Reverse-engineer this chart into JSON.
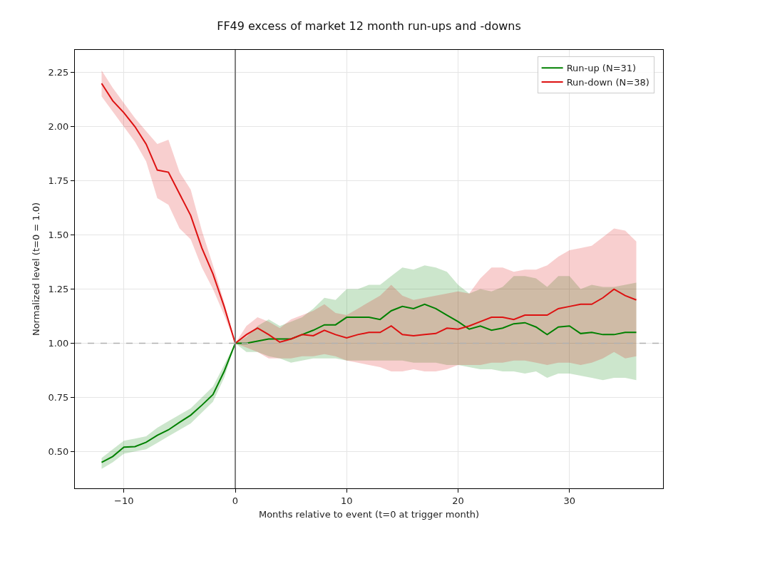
{
  "chart_data": {
    "type": "line",
    "title": "FF49 excess of market 12 month run-ups and -downs",
    "xlabel": "Months relative to event (t=0 at trigger month)",
    "ylabel": "Normalized level (t=0 = 1.0)",
    "x": [
      -12,
      -11,
      -10,
      -9,
      -8,
      -7,
      -6,
      -5,
      -4,
      -3,
      -2,
      -1,
      0,
      1,
      2,
      3,
      4,
      5,
      6,
      7,
      8,
      9,
      10,
      11,
      12,
      13,
      14,
      15,
      16,
      17,
      18,
      19,
      20,
      21,
      22,
      23,
      24,
      25,
      26,
      27,
      28,
      29,
      30,
      31,
      32,
      33,
      34,
      35,
      36
    ],
    "series": [
      {
        "name": "Run-up (N=31)",
        "color": "#008000",
        "values": [
          0.45,
          0.477,
          0.52,
          0.523,
          0.543,
          0.575,
          0.6,
          0.635,
          0.668,
          0.714,
          0.763,
          0.87,
          1.0,
          1.0,
          1.01,
          1.02,
          1.02,
          1.02,
          1.04,
          1.06,
          1.085,
          1.085,
          1.12,
          1.12,
          1.12,
          1.11,
          1.15,
          1.17,
          1.16,
          1.18,
          1.16,
          1.13,
          1.1,
          1.065,
          1.08,
          1.06,
          1.07,
          1.09,
          1.095,
          1.075,
          1.04,
          1.075,
          1.08,
          1.045,
          1.05,
          1.04,
          1.04,
          1.05,
          1.05
        ],
        "lower": [
          0.42,
          0.45,
          0.49,
          0.5,
          0.51,
          0.54,
          0.57,
          0.6,
          0.63,
          0.68,
          0.73,
          0.84,
          1.0,
          0.96,
          0.96,
          0.94,
          0.93,
          0.91,
          0.92,
          0.93,
          0.93,
          0.93,
          0.92,
          0.92,
          0.92,
          0.92,
          0.92,
          0.92,
          0.91,
          0.91,
          0.91,
          0.9,
          0.9,
          0.89,
          0.88,
          0.88,
          0.87,
          0.87,
          0.86,
          0.87,
          0.84,
          0.86,
          0.86,
          0.85,
          0.84,
          0.83,
          0.84,
          0.84,
          0.83
        ],
        "upper": [
          0.47,
          0.51,
          0.55,
          0.56,
          0.57,
          0.61,
          0.64,
          0.67,
          0.7,
          0.75,
          0.8,
          0.9,
          1.0,
          1.03,
          1.08,
          1.11,
          1.08,
          1.1,
          1.12,
          1.16,
          1.21,
          1.2,
          1.25,
          1.25,
          1.27,
          1.27,
          1.31,
          1.35,
          1.34,
          1.36,
          1.35,
          1.33,
          1.27,
          1.23,
          1.25,
          1.24,
          1.26,
          1.31,
          1.31,
          1.3,
          1.26,
          1.31,
          1.31,
          1.25,
          1.27,
          1.26,
          1.26,
          1.27,
          1.28
        ]
      },
      {
        "name": "Run-down (N=38)",
        "color": "#dd1111",
        "values": [
          2.2,
          2.12,
          2.065,
          2.0,
          1.92,
          1.8,
          1.79,
          1.69,
          1.59,
          1.44,
          1.32,
          1.17,
          1.0,
          1.04,
          1.07,
          1.04,
          1.005,
          1.02,
          1.04,
          1.035,
          1.06,
          1.04,
          1.025,
          1.04,
          1.05,
          1.05,
          1.08,
          1.04,
          1.035,
          1.04,
          1.045,
          1.07,
          1.065,
          1.08,
          1.1,
          1.12,
          1.12,
          1.11,
          1.13,
          1.13,
          1.13,
          1.16,
          1.17,
          1.18,
          1.18,
          1.21,
          1.25,
          1.22,
          1.2
        ],
        "lower": [
          2.14,
          2.07,
          2.0,
          1.93,
          1.84,
          1.67,
          1.64,
          1.53,
          1.48,
          1.35,
          1.25,
          1.13,
          1.0,
          0.98,
          0.96,
          0.93,
          0.93,
          0.93,
          0.94,
          0.94,
          0.95,
          0.94,
          0.92,
          0.91,
          0.9,
          0.89,
          0.87,
          0.87,
          0.88,
          0.87,
          0.87,
          0.88,
          0.9,
          0.9,
          0.9,
          0.91,
          0.91,
          0.92,
          0.92,
          0.91,
          0.9,
          0.91,
          0.91,
          0.9,
          0.91,
          0.93,
          0.96,
          0.93,
          0.94
        ],
        "upper": [
          2.26,
          2.18,
          2.11,
          2.04,
          1.98,
          1.92,
          1.94,
          1.79,
          1.71,
          1.52,
          1.36,
          1.19,
          1.0,
          1.08,
          1.12,
          1.1,
          1.07,
          1.11,
          1.13,
          1.15,
          1.18,
          1.14,
          1.13,
          1.16,
          1.19,
          1.22,
          1.27,
          1.22,
          1.2,
          1.21,
          1.22,
          1.23,
          1.24,
          1.23,
          1.3,
          1.35,
          1.35,
          1.33,
          1.34,
          1.34,
          1.36,
          1.4,
          1.43,
          1.44,
          1.45,
          1.49,
          1.53,
          1.52,
          1.47
        ]
      }
    ],
    "xlim": [
      -14.4,
      38.4
    ],
    "xticks": [
      {
        "value": -10,
        "label": "−10"
      },
      0,
      10,
      20,
      30
    ],
    "ylim": [
      0.33,
      2.355
    ],
    "yticks": [
      {
        "value": 0.5,
        "label": "0.50"
      },
      {
        "value": 0.75,
        "label": "0.75"
      },
      {
        "value": 1,
        "label": "1.00"
      },
      {
        "value": 1.25,
        "label": "1.25"
      },
      {
        "value": 1.5,
        "label": "1.50"
      },
      {
        "value": 1.75,
        "label": "1.75"
      },
      {
        "value": 2,
        "label": "2.00"
      },
      {
        "value": 2.25,
        "label": "2.25"
      }
    ],
    "ref_lines": [
      {
        "axis": "x",
        "value": 0,
        "color": "#808080",
        "line_style": "solid"
      },
      {
        "axis": "y",
        "value": 1,
        "color": "#b0b0b0",
        "line_style": "dashed"
      }
    ],
    "grid": true,
    "legend": "top right",
    "marker": "none",
    "line_style": "solid"
  }
}
